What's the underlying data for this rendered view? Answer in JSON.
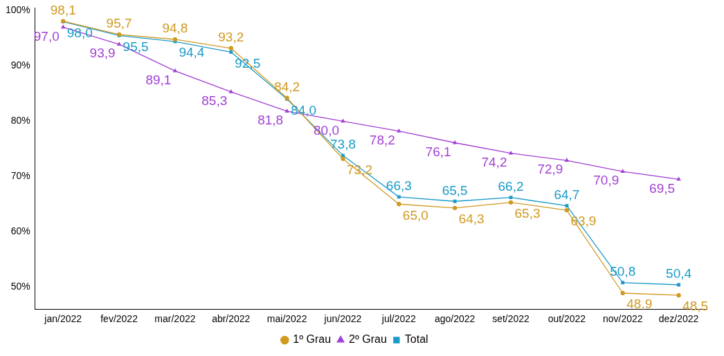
{
  "chart_data": {
    "type": "line",
    "categories": [
      "jan/2022",
      "fev/2022",
      "mar/2022",
      "abr/2022",
      "mai/2022",
      "jun/2022",
      "jul/2022",
      "ago/2022",
      "set/2022",
      "out/2022",
      "nov/2022",
      "dez/2022"
    ],
    "ylim": [
      46,
      100.5
    ],
    "yticks": [
      {
        "value": 50,
        "label": "50%"
      },
      {
        "value": 60,
        "label": "60%"
      },
      {
        "value": 70,
        "label": "70%"
      },
      {
        "value": 80,
        "label": "80%"
      },
      {
        "value": 90,
        "label": "90%"
      },
      {
        "value": 100,
        "label": "100%"
      }
    ],
    "grid": false,
    "legend": "bottom",
    "series": [
      {
        "name": "1º Grau",
        "color": "#d09a20",
        "marker": "circle",
        "values": [
          98.1,
          95.7,
          94.8,
          93.2,
          84.2,
          73.2,
          65.0,
          64.3,
          65.3,
          63.9,
          48.9,
          48.5
        ],
        "value_labels": [
          "98,1",
          "95,7",
          "94,8",
          "93,2",
          "84,2",
          "73,2",
          "65,0",
          "64,3",
          "65,3",
          "63,9",
          "48,9",
          "48,5"
        ]
      },
      {
        "name": "2º Grau",
        "color": "#a23fd4",
        "marker": "triangle",
        "values": [
          97.0,
          93.9,
          89.1,
          85.3,
          81.8,
          80.0,
          78.2,
          76.1,
          74.2,
          72.9,
          70.9,
          69.5
        ],
        "value_labels": [
          "97,0",
          "93,9",
          "89,1",
          "85,3",
          "81,8",
          "80,0",
          "78,2",
          "76,1",
          "74,2",
          "72,9",
          "70,9",
          "69,5"
        ]
      },
      {
        "name": "Total",
        "color": "#1a9ac8",
        "marker": "square",
        "values": [
          98.0,
          95.5,
          94.4,
          92.5,
          84.0,
          73.8,
          66.3,
          65.5,
          66.2,
          64.7,
          50.8,
          50.4
        ],
        "value_labels": [
          "98,0",
          "95,5",
          "94,4",
          "92,5",
          "84,0",
          "73,8",
          "66,3",
          "65,5",
          "66,2",
          "64,7",
          "50,8",
          "50,4"
        ]
      }
    ]
  }
}
